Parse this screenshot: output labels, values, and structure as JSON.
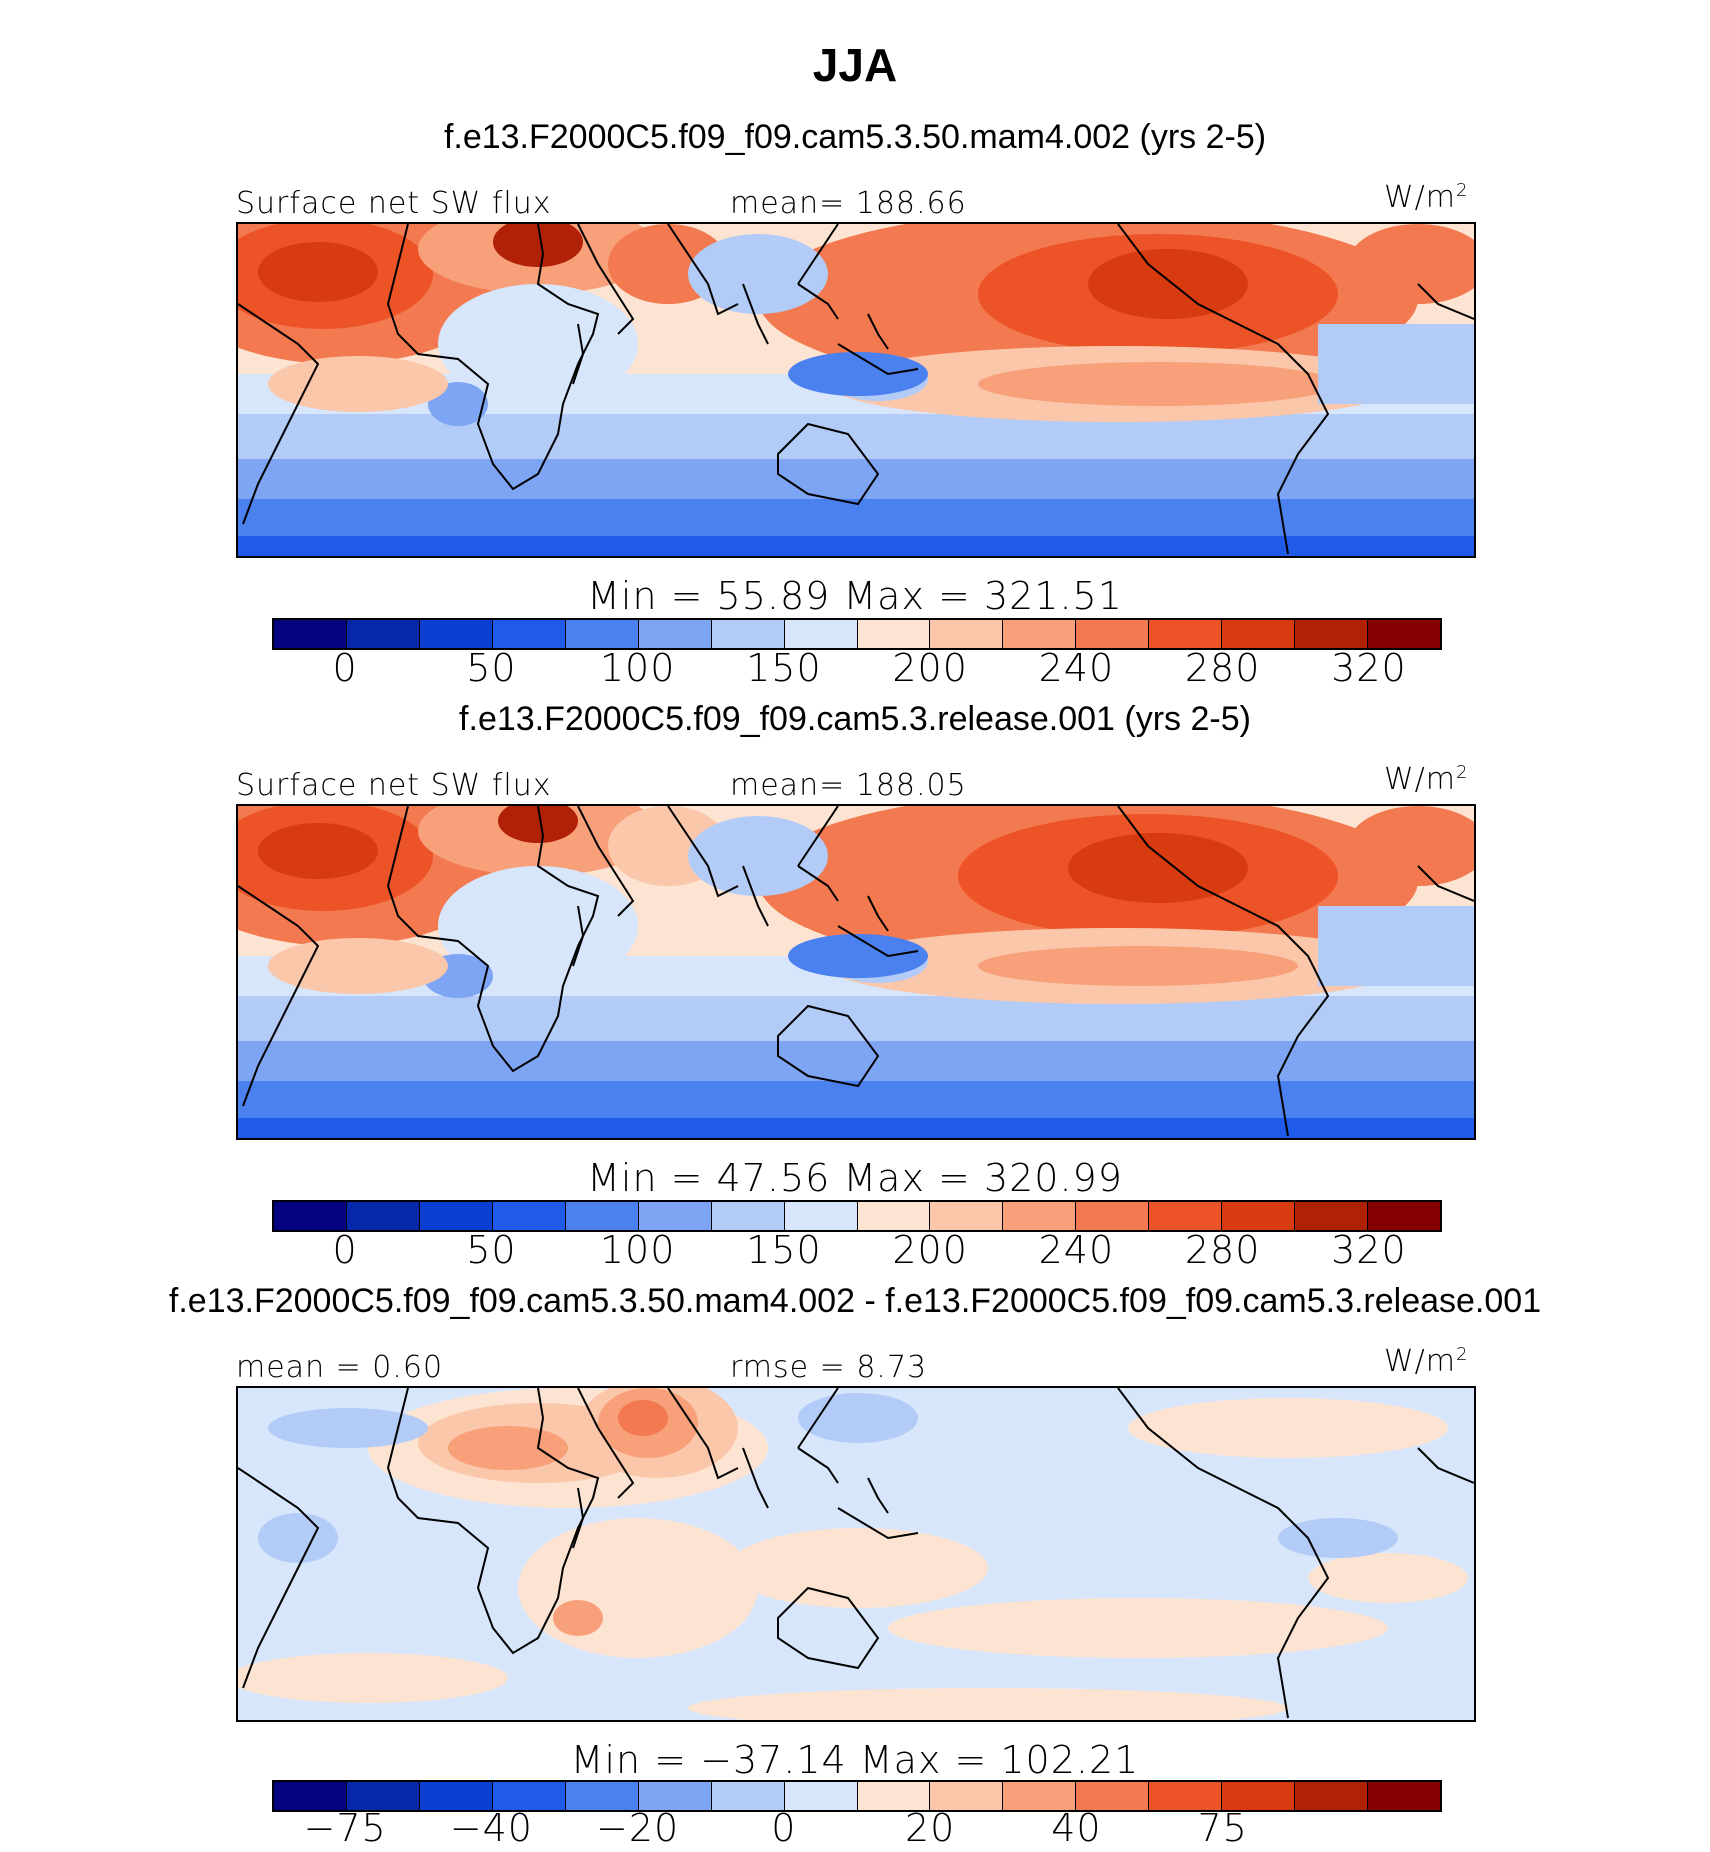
{
  "title": "JJA",
  "colors": {
    "palette_abs": [
      "#03037f",
      "#0428a8",
      "#0a3fd2",
      "#1f5be8",
      "#4b80ef",
      "#7ea5f3",
      "#b2cbf7",
      "#d7e6fb",
      "#fde4d2",
      "#fbc7aa",
      "#f7a07a",
      "#f27950",
      "#ec5327",
      "#d93b10",
      "#b02108",
      "#850000"
    ],
    "palette_diff": [
      "#03037f",
      "#0428a8",
      "#0a3fd2",
      "#1f5be8",
      "#4b80ef",
      "#7ea5f3",
      "#b2cbf7",
      "#d7e6fb",
      "#fde4d2",
      "#fbc7aa",
      "#f7a07a",
      "#f27950",
      "#ec5327",
      "#d93b10",
      "#b02108",
      "#850000"
    ],
    "coastline": "#000000"
  },
  "panels": [
    {
      "title": "f.e13.F2000C5.f09_f09.cam5.3.50.mam4.002 (yrs 2-5)",
      "left_label": "Surface net SW flux",
      "center_label": "mean= 188.66",
      "units": "W/m",
      "units_sup": "2",
      "min_max": "Min  =   55.89  Max  =  321.51",
      "colorbar_ticks": [
        "0",
        "50",
        "100",
        "150",
        "200",
        "240",
        "280",
        "320"
      ],
      "colorbar_type": "abs"
    },
    {
      "title": "f.e13.F2000C5.f09_f09.cam5.3.release.001 (yrs 2-5)",
      "left_label": "Surface net SW flux",
      "center_label": "mean= 188.05",
      "units": "W/m",
      "units_sup": "2",
      "min_max": "Min  =   47.56  Max  =  320.99",
      "colorbar_ticks": [
        "0",
        "50",
        "100",
        "150",
        "200",
        "240",
        "280",
        "320"
      ],
      "colorbar_type": "abs"
    },
    {
      "title": "f.e13.F2000C5.f09_f09.cam5.3.50.mam4.002 - f.e13.F2000C5.f09_f09.cam5.3.release.001",
      "left_label": "mean =   0.60",
      "center_label": "rmse =   8.73",
      "units": "W/m",
      "units_sup": "2",
      "min_max": "Min  =  −37.14  Max  =  102.21",
      "colorbar_ticks": [
        "−75",
        "−40",
        "−20",
        "0",
        "20",
        "40",
        "75"
      ],
      "colorbar_type": "diff"
    }
  ]
}
